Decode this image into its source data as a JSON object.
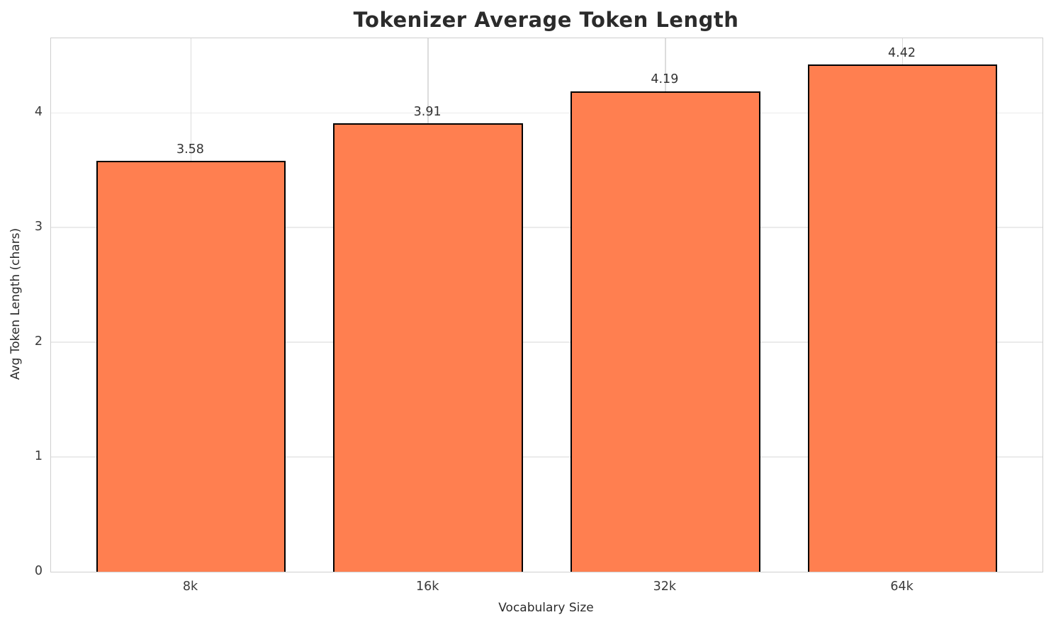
{
  "chart_data": {
    "type": "bar",
    "title": "Tokenizer Average Token Length",
    "xlabel": "Vocabulary Size",
    "ylabel": "Avg Token Length (chars)",
    "categories": [
      "8k",
      "16k",
      "32k",
      "64k"
    ],
    "values": [
      3.58,
      3.91,
      4.19,
      4.42
    ],
    "bar_labels": [
      "3.58",
      "3.91",
      "4.19",
      "4.42"
    ],
    "yticks": [
      0,
      1,
      2,
      3,
      4
    ],
    "ylim": [
      0,
      4.65
    ],
    "grid": true,
    "legend": "none",
    "bar_color": "#FF7F50",
    "bar_edge_color": "#000000",
    "grid_color": "#e0e0e0",
    "text_color": "#2b2b2b"
  }
}
